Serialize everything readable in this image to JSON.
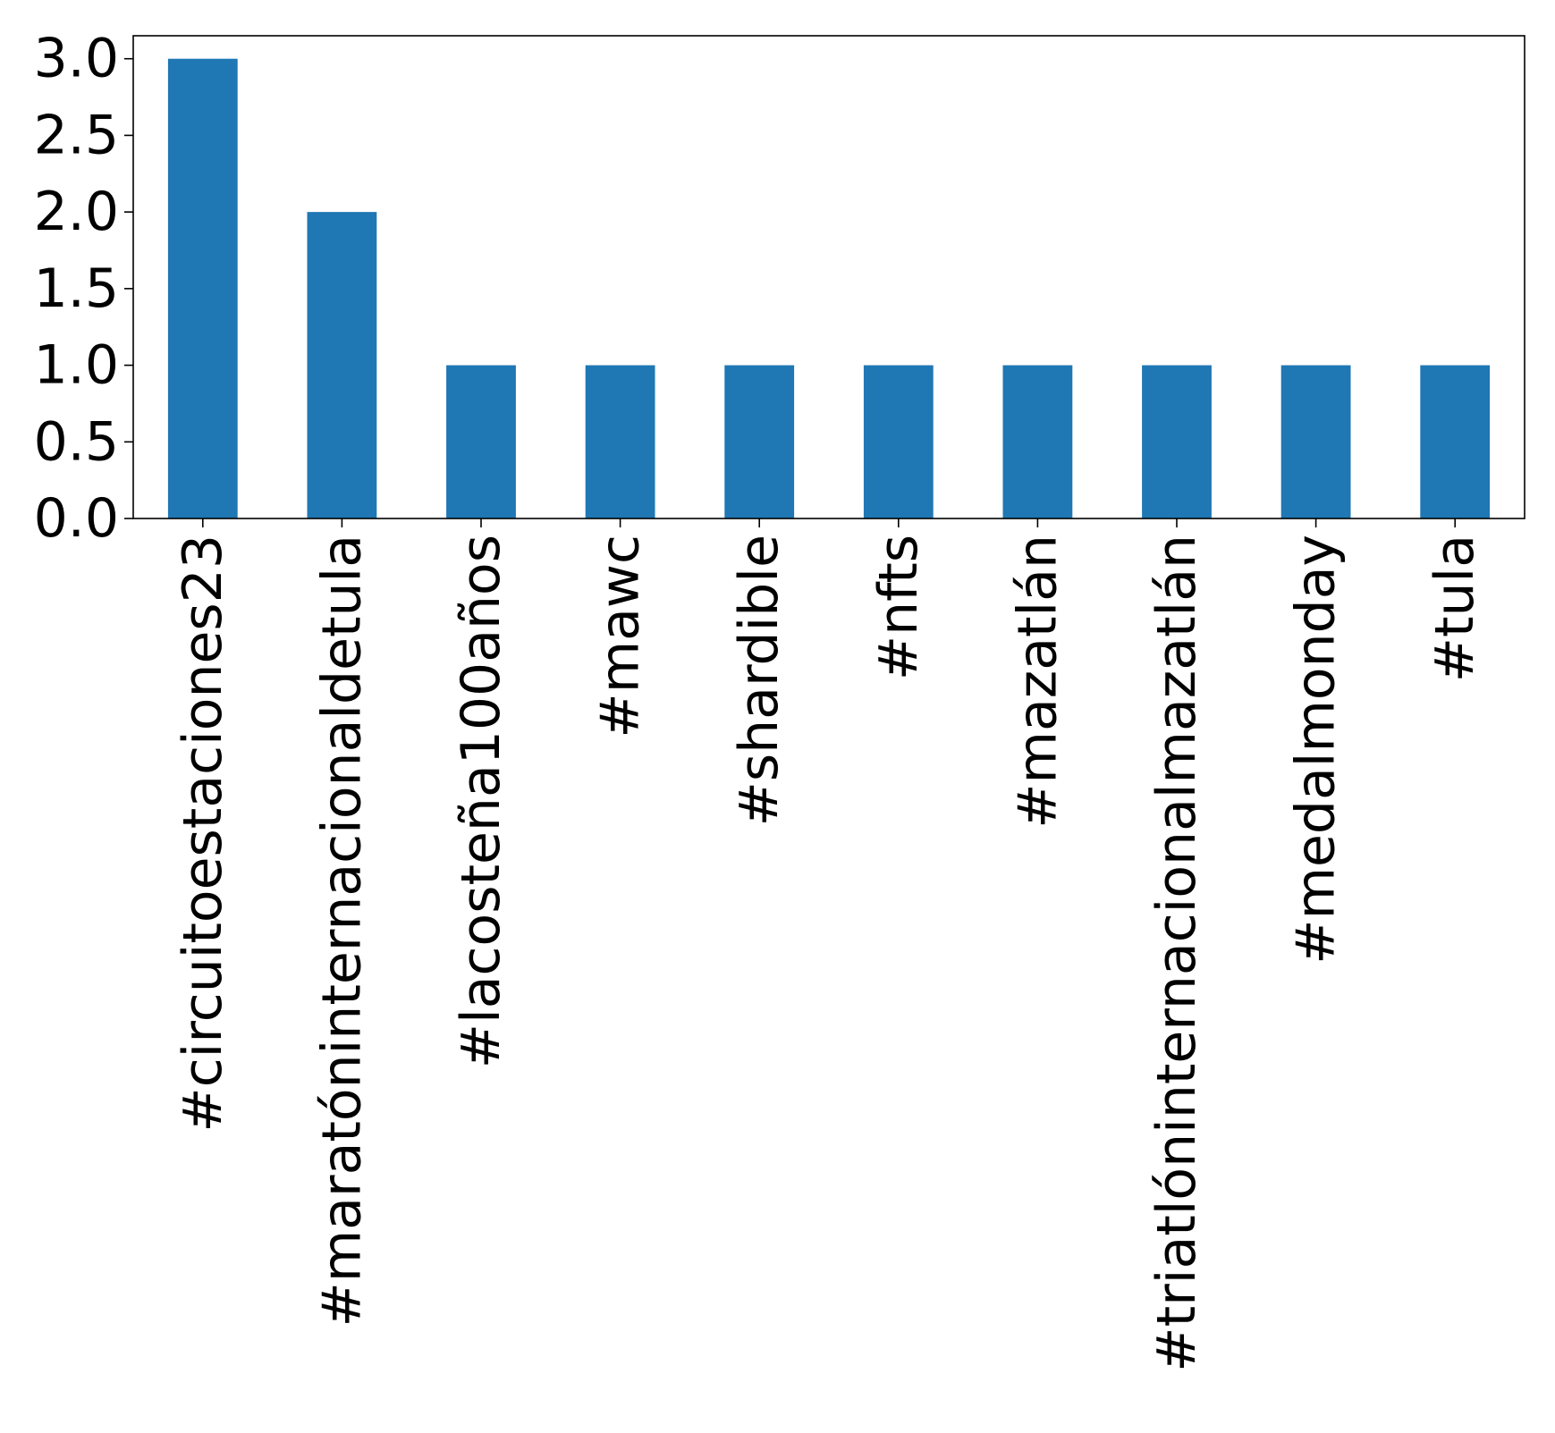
{
  "chart_data": {
    "type": "bar",
    "categories": [
      "#circuitoestaciones23",
      "#maratóninternacionaldetula",
      "#lacosteña100años",
      "#mawc",
      "#shardible",
      "#nfts",
      "#mazatlán",
      "#triatlóninternacionalmazatlán",
      "#medalmonday",
      "#tula"
    ],
    "values": [
      3,
      2,
      1,
      1,
      1,
      1,
      1,
      1,
      1,
      1
    ],
    "ylim": [
      0,
      3.15
    ],
    "yticks": [
      "0.0",
      "0.5",
      "1.0",
      "1.5",
      "2.0",
      "2.5",
      "3.0"
    ],
    "title": "",
    "xlabel": "",
    "ylabel": "",
    "grid": false,
    "bar_color": "#1f77b4"
  }
}
